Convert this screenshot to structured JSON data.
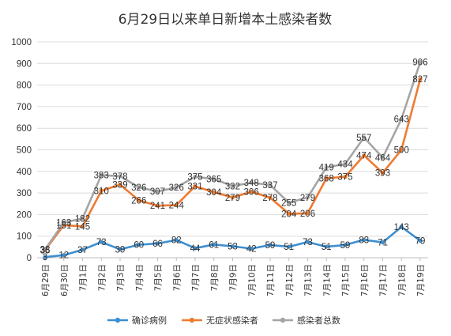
{
  "chart_data": {
    "type": "line",
    "title": "6月29日以来单日新增本土感染者数",
    "xlabel": "",
    "ylabel": "",
    "ylim": [
      0,
      1000
    ],
    "yticks": [
      0,
      100,
      200,
      300,
      400,
      500,
      600,
      700,
      800,
      900,
      1000
    ],
    "grid": "horizontal",
    "legend_position": "bottom",
    "categories": [
      "6月29日",
      "6月30日",
      "7月1日",
      "7月2日",
      "7月3日",
      "7月4日",
      "7月5日",
      "7月6日",
      "7月7日",
      "7月8日",
      "7月9日",
      "7月10日",
      "7月11日",
      "7月12日",
      "7月13日",
      "7月14日",
      "7月15日",
      "7月16日",
      "7月17日",
      "7月18日",
      "7月19日"
    ],
    "series": [
      {
        "name": "确诊病例",
        "color": "#3d8fd1",
        "values": [
          3,
          12,
          37,
          73,
          39,
          60,
          66,
          82,
          44,
          61,
          53,
          42,
          59,
          51,
          73,
          51,
          59,
          83,
          71,
          143,
          79
        ]
      },
      {
        "name": "无症状感染者",
        "color": "#ee7b30",
        "values": [
          35,
          151,
          145,
          310,
          339,
          266,
          241,
          244,
          331,
          304,
          279,
          306,
          278,
          204,
          206,
          368,
          375,
          474,
          393,
          500,
          827
        ]
      },
      {
        "name": "感染者总数",
        "color": "#a5a5a5",
        "values": [
          38,
          163,
          182,
          383,
          378,
          326,
          307,
          326,
          375,
          365,
          332,
          348,
          337,
          255,
          279,
          419,
          434,
          557,
          464,
          643,
          906
        ]
      }
    ]
  }
}
